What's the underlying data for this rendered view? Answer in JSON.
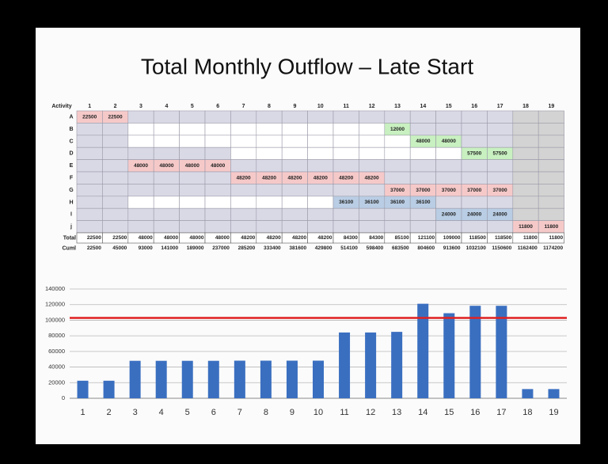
{
  "title": "Total Monthly Outflow – Late Start",
  "table": {
    "header": [
      "Activity",
      "1",
      "2",
      "3",
      "4",
      "5",
      "6",
      "7",
      "8",
      "9",
      "10",
      "11",
      "12",
      "13",
      "14",
      "15",
      "16",
      "17",
      "18",
      "19"
    ],
    "rows": [
      {
        "label": "A",
        "color": "#f6c9c9",
        "text_color": "#c00000",
        "cells": [
          22500,
          22500,
          null,
          null,
          null,
          null,
          null,
          null,
          null,
          null,
          null,
          null,
          null,
          null,
          null,
          null,
          null,
          null,
          null
        ]
      },
      {
        "label": "B",
        "color": "#c8f0c0",
        "text_color": "#208020",
        "cells": [
          null,
          null,
          null,
          null,
          null,
          null,
          null,
          null,
          null,
          null,
          null,
          null,
          12000,
          null,
          null,
          null,
          null,
          null,
          null
        ]
      },
      {
        "label": "C",
        "color": "#c8f0c0",
        "text_color": "#208020",
        "cells": [
          null,
          null,
          null,
          null,
          null,
          null,
          null,
          null,
          null,
          null,
          null,
          null,
          null,
          48000,
          48000,
          null,
          null,
          null,
          null
        ]
      },
      {
        "label": "D",
        "color": "#c8f0c0",
        "text_color": "#208020",
        "cells": [
          null,
          null,
          null,
          null,
          null,
          null,
          null,
          null,
          null,
          null,
          null,
          null,
          null,
          null,
          null,
          57500,
          57500,
          null,
          null
        ]
      },
      {
        "label": "E",
        "color": "#f6c9c9",
        "text_color": "#c00000",
        "cells": [
          null,
          null,
          48000,
          48000,
          48000,
          48000,
          null,
          null,
          null,
          null,
          null,
          null,
          null,
          null,
          null,
          null,
          null,
          null,
          null
        ]
      },
      {
        "label": "F",
        "color": "#f6c9c9",
        "text_color": "#c00000",
        "cells": [
          null,
          null,
          null,
          null,
          null,
          null,
          48200,
          48200,
          48200,
          48200,
          48200,
          48200,
          null,
          null,
          null,
          null,
          null,
          null,
          null
        ]
      },
      {
        "label": "G",
        "color": "#f6c9c9",
        "text_color": "#c00000",
        "cells": [
          null,
          null,
          null,
          null,
          null,
          null,
          null,
          null,
          null,
          null,
          null,
          null,
          37000,
          37000,
          37000,
          37000,
          37000,
          null,
          null
        ]
      },
      {
        "label": "H",
        "color": "#b9cde4",
        "text_color": "#1f3d66",
        "cells": [
          null,
          null,
          null,
          null,
          null,
          null,
          null,
          null,
          null,
          null,
          36100,
          36100,
          36100,
          36100,
          null,
          null,
          null,
          null,
          null
        ]
      },
      {
        "label": "I",
        "color": "#b9cde4",
        "text_color": "#1f3d66",
        "cells": [
          null,
          null,
          null,
          null,
          null,
          null,
          null,
          null,
          null,
          null,
          null,
          null,
          null,
          null,
          24000,
          24000,
          24000,
          null,
          null
        ]
      },
      {
        "label": "j",
        "color": "#f6c9c9",
        "text_color": "#c00000",
        "cells": [
          null,
          null,
          null,
          null,
          null,
          null,
          null,
          null,
          null,
          null,
          null,
          null,
          null,
          null,
          null,
          null,
          null,
          11800,
          11800
        ]
      }
    ],
    "total": {
      "label": "Total",
      "values": [
        22500,
        22500,
        48000,
        48000,
        48000,
        48000,
        48200,
        48200,
        48200,
        48200,
        84300,
        84300,
        85100,
        121100,
        109000,
        118500,
        118500,
        11800,
        11800
      ]
    },
    "cumulative": {
      "label": "Cuml",
      "values": [
        22500,
        45000,
        93000,
        141000,
        189000,
        237000,
        285200,
        333400,
        381600,
        429800,
        514100,
        598400,
        683500,
        804600,
        913600,
        1032100,
        1150600,
        1162400,
        1174200
      ]
    }
  },
  "chart_data": {
    "type": "bar",
    "categories": [
      "1",
      "2",
      "3",
      "4",
      "5",
      "6",
      "7",
      "8",
      "9",
      "10",
      "11",
      "12",
      "13",
      "14",
      "15",
      "16",
      "17",
      "18",
      "19"
    ],
    "values": [
      22500,
      22500,
      48000,
      48000,
      48000,
      48000,
      48200,
      48200,
      48200,
      48200,
      84300,
      84300,
      85100,
      121100,
      109000,
      118500,
      118500,
      11800,
      11800
    ],
    "color": "#3a6fc0",
    "ylim": [
      0,
      140000
    ],
    "yticks": [
      0,
      20000,
      40000,
      60000,
      80000,
      100000,
      120000,
      140000
    ],
    "grid": true,
    "reference_line": {
      "value": 103000,
      "color": "#e02020"
    }
  }
}
